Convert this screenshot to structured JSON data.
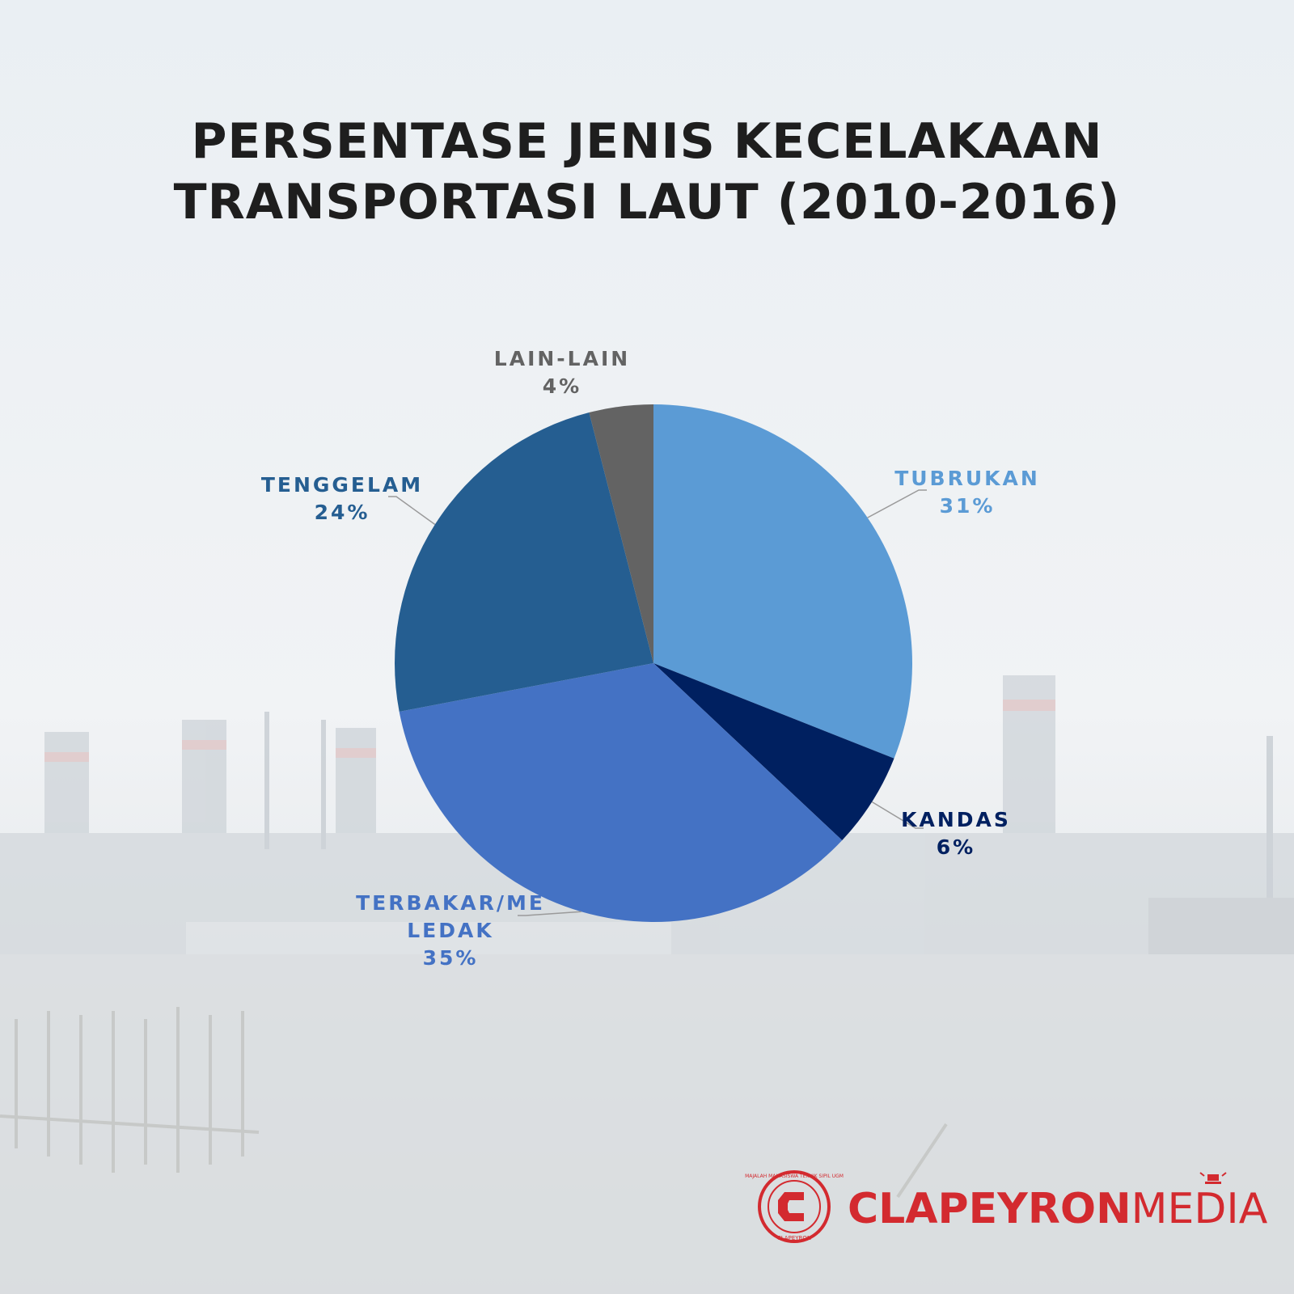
{
  "chart_data": {
    "type": "pie",
    "title_lines": [
      "PERSENTASE JENIS KECELAKAAN",
      "TRANSPORTASI LAUT (2010-2016)"
    ],
    "slices": [
      {
        "label": "TUBRUKAN",
        "label_lines": [
          "TUBRUKAN"
        ],
        "value": 31,
        "value_label": "31%",
        "color": "#5b9bd5"
      },
      {
        "label": "KANDAS",
        "label_lines": [
          "KANDAS"
        ],
        "value": 6,
        "value_label": "6%",
        "color": "#002060"
      },
      {
        "label": "TERBAKAR/MELEDAK",
        "label_lines": [
          "TERBAKAR/ME",
          "LEDAK"
        ],
        "value": 35,
        "value_label": "35%",
        "color": "#4472c4"
      },
      {
        "label": "TENGGELAM",
        "label_lines": [
          "TENGGELAM"
        ],
        "value": 24,
        "value_label": "24%",
        "color": "#255e91"
      },
      {
        "label": "LAIN-LAIN",
        "label_lines": [
          "LAIN-LAIN"
        ],
        "value": 4,
        "value_label": "4%",
        "color": "#636363"
      }
    ],
    "start_angle": "12 o'clock",
    "direction": "clockwise",
    "legend": "none",
    "data_labels": "outside with leader lines"
  },
  "logo": {
    "brand_bold": "CLAPEYRON",
    "brand_light": "MEDIA",
    "seal_ring_text": "MAJALAH MAHASISWA TEKNIK SIPIL UGM",
    "seal_bottom_text": "CLAPEYRON",
    "color": "#d32a2f"
  },
  "background": {
    "sky": "#eef2f5",
    "haze": "#e6eaee",
    "water": "#dadedf"
  }
}
